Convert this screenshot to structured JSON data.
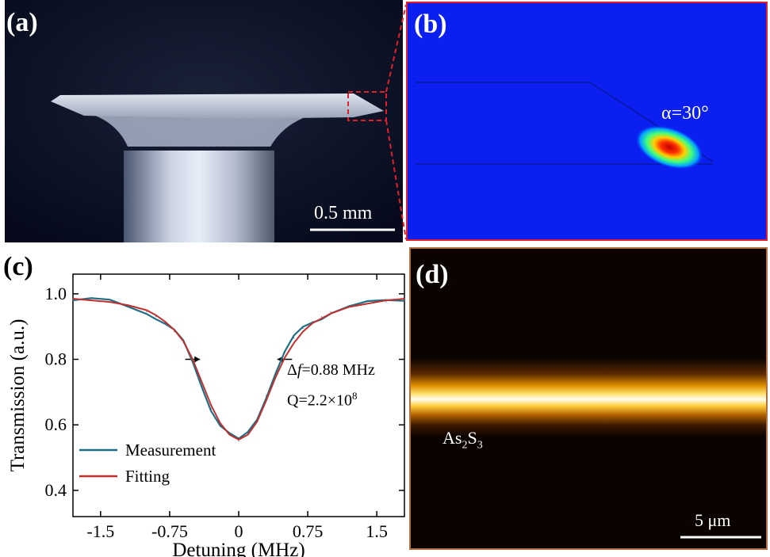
{
  "panel_a": {
    "label": "(a)",
    "scalebar": "0.5 mm"
  },
  "panel_b": {
    "label": "(b)",
    "angle": "α=30°"
  },
  "panel_c": {
    "label": "(c)",
    "linewidth_prefix": "Δ",
    "linewidth_var": "f",
    "linewidth_value": "=0.88 MHz",
    "q_prefix": "Q=2.2×10",
    "q_exp": "8",
    "legend": [
      {
        "name": "Measurement",
        "color": "#1f6e86"
      },
      {
        "name": "Fitting",
        "color": "#c0302e"
      }
    ],
    "chart_data": {
      "type": "line",
      "xlabel": "Detuning (MHz)",
      "ylabel": "Transmission (a.u.)",
      "xlim": [
        -1.8,
        1.8
      ],
      "ylim": [
        0.32,
        1.06
      ],
      "xticks": [
        -1.5,
        -0.75,
        0,
        0.75,
        1.5
      ],
      "xtick_labels": [
        "-1.5",
        "-0.75",
        "0",
        "0.75",
        "1.5"
      ],
      "yticks": [
        0.4,
        0.6,
        0.8,
        1.0
      ],
      "ytick_labels": [
        "0.4",
        "0.6",
        "0.8",
        "1.0"
      ],
      "series": [
        {
          "name": "Measurement",
          "x": [
            -1.8,
            -1.6,
            -1.4,
            -1.2,
            -1.0,
            -0.9,
            -0.8,
            -0.7,
            -0.6,
            -0.5,
            -0.4,
            -0.3,
            -0.2,
            -0.1,
            0,
            0.1,
            0.2,
            0.3,
            0.4,
            0.5,
            0.6,
            0.7,
            0.8,
            0.9,
            1.0,
            1.2,
            1.4,
            1.6,
            1.8
          ],
          "y": [
            0.98,
            0.98,
            0.975,
            0.96,
            0.945,
            0.93,
            0.91,
            0.885,
            0.85,
            0.79,
            0.72,
            0.65,
            0.6,
            0.57,
            0.55,
            0.575,
            0.62,
            0.69,
            0.76,
            0.82,
            0.865,
            0.895,
            0.915,
            0.93,
            0.945,
            0.96,
            0.97,
            0.975,
            0.98
          ]
        },
        {
          "name": "Fitting",
          "x": [
            -1.8,
            -1.6,
            -1.4,
            -1.2,
            -1.0,
            -0.9,
            -0.8,
            -0.7,
            -0.6,
            -0.5,
            -0.4,
            -0.3,
            -0.2,
            -0.1,
            0,
            0.1,
            0.2,
            0.3,
            0.4,
            0.5,
            0.6,
            0.7,
            0.8,
            0.9,
            1.0,
            1.2,
            1.4,
            1.6,
            1.8
          ],
          "y": [
            0.985,
            0.98,
            0.975,
            0.965,
            0.95,
            0.935,
            0.915,
            0.89,
            0.855,
            0.8,
            0.73,
            0.66,
            0.605,
            0.57,
            0.555,
            0.57,
            0.61,
            0.675,
            0.745,
            0.805,
            0.85,
            0.885,
            0.91,
            0.925,
            0.94,
            0.96,
            0.97,
            0.98,
            0.985
          ]
        }
      ]
    }
  },
  "panel_d": {
    "label": "(d)",
    "material_base1": "As",
    "material_sub1": "2",
    "material_base2": "S",
    "material_sub2": "3",
    "scalebar": "5 μm"
  }
}
